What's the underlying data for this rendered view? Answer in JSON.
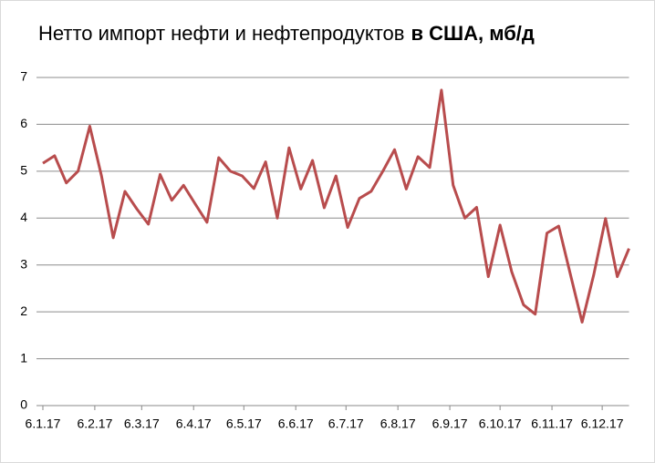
{
  "chart_data": {
    "type": "line",
    "title_parts": [
      "Нетто импорт нефти и нефтепродуктов",
      "в США, мб/д"
    ],
    "x": [
      "6.1.17",
      "13.1.17",
      "20.1.17",
      "27.1.17",
      "3.2.17",
      "10.2.17",
      "17.2.17",
      "24.2.17",
      "3.3.17",
      "10.3.17",
      "17.3.17",
      "24.3.17",
      "31.3.17",
      "7.4.17",
      "14.4.17",
      "21.4.17",
      "28.4.17",
      "5.5.17",
      "12.5.17",
      "19.5.17",
      "26.5.17",
      "2.6.17",
      "9.6.17",
      "16.6.17",
      "23.6.17",
      "30.6.17",
      "7.7.17",
      "14.7.17",
      "21.7.17",
      "28.7.17",
      "4.8.17",
      "11.8.17",
      "18.8.17",
      "25.8.17",
      "1.9.17",
      "8.9.17",
      "15.9.17",
      "22.9.17",
      "29.9.17",
      "6.10.17",
      "13.10.17",
      "20.10.17",
      "27.10.17",
      "3.11.17",
      "10.11.17",
      "17.11.17",
      "24.11.17",
      "1.12.17",
      "8.12.17",
      "15.12.17",
      "22.12.17"
    ],
    "series": [
      {
        "color": "#b84c4d",
        "values": [
          5.17,
          5.33,
          4.75,
          5.0,
          5.96,
          4.9,
          3.58,
          4.57,
          4.2,
          3.87,
          4.93,
          4.38,
          4.7,
          4.3,
          3.91,
          5.29,
          5.0,
          4.9,
          4.63,
          5.2,
          4.0,
          5.5,
          4.62,
          5.23,
          4.22,
          4.9,
          3.8,
          4.42,
          4.57,
          5.0,
          5.46,
          4.62,
          5.31,
          5.08,
          6.73,
          4.7,
          4.0,
          4.23,
          2.75,
          3.85,
          2.85,
          2.15,
          1.95,
          3.68,
          3.83,
          2.8,
          1.78,
          2.8,
          3.99,
          2.75,
          3.35
        ]
      }
    ],
    "xlim": [
      "6.1.17",
      "22.12.17"
    ],
    "xticks": [
      "6.1.17",
      "6.2.17",
      "6.3.17",
      "6.4.17",
      "6.5.17",
      "6.6.17",
      "6.7.17",
      "6.8.17",
      "6.9.17",
      "6.10.17",
      "6.11.17",
      "6.12.17"
    ],
    "ylim": [
      0,
      7
    ],
    "yticks": [
      0,
      1,
      2,
      3,
      4,
      5,
      6,
      7
    ],
    "grid": true
  }
}
